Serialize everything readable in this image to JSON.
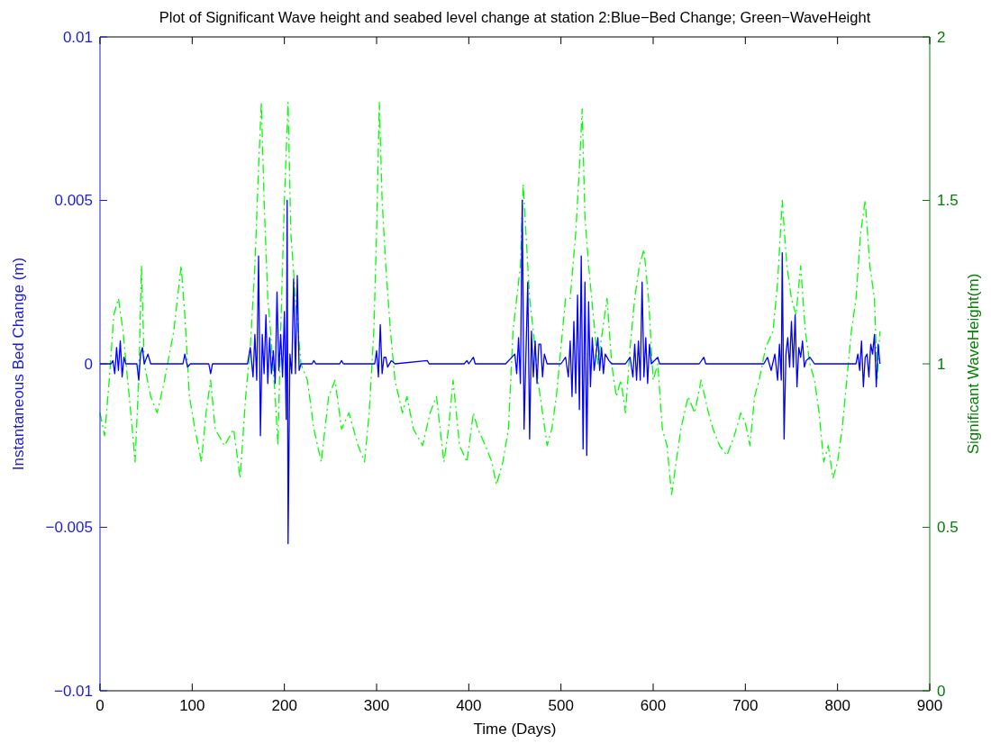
{
  "chart_data": {
    "type": "line",
    "title": "Plot of Significant Wave height and seabed level change at station 2:Blue−Bed Change; Green−WaveHeight",
    "xlabel": "Time (Days)",
    "ylabel": "Instantaneous Bed Change (m)",
    "y2label": "Significant WaveHeight(m)",
    "xlim": [
      0,
      900
    ],
    "xticks": [
      0,
      100,
      200,
      300,
      400,
      500,
      600,
      700,
      800,
      900
    ],
    "ylim": [
      -0.01,
      0.01
    ],
    "yticks": [
      {
        "value": -0.01,
        "label": "−0.01"
      },
      {
        "value": -0.005,
        "label": "−0.005"
      },
      0,
      0.005,
      0.01
    ],
    "y2lim": [
      0,
      2
    ],
    "y2ticks": [
      0,
      0.5,
      1,
      1.5,
      2
    ],
    "grid": false,
    "series": [
      {
        "color": "#00ff00",
        "axis": "y2",
        "line_style": "dashed",
        "x": [
          0,
          5,
          10,
          15,
          20,
          25,
          30,
          35,
          38,
          42,
          45,
          48,
          55,
          62,
          70,
          80,
          88,
          92,
          97,
          103,
          110,
          115,
          120,
          125,
          135,
          145,
          152,
          158,
          163,
          168,
          172,
          175,
          178,
          182,
          185,
          190,
          193,
          196,
          200,
          204,
          207,
          212,
          218,
          225,
          232,
          240,
          248,
          255,
          262,
          270,
          280,
          287,
          292,
          297,
          300,
          303,
          306,
          310,
          315,
          320,
          328,
          333,
          340,
          350,
          358,
          365,
          373,
          378,
          383,
          390,
          398,
          405,
          410,
          418,
          425,
          430,
          437,
          443,
          448,
          452,
          456,
          459,
          462,
          466,
          470,
          475,
          480,
          485,
          490,
          495,
          500,
          505,
          510,
          516,
          520,
          523,
          526,
          530,
          535,
          540,
          545,
          550,
          555,
          560,
          565,
          570,
          575,
          580,
          585,
          590,
          595,
          600,
          605,
          610,
          615,
          620,
          625,
          630,
          638,
          645,
          652,
          660,
          665,
          672,
          680,
          688,
          695,
          700,
          705,
          710,
          715,
          722,
          730,
          735,
          740,
          745,
          750,
          755,
          760,
          765,
          770,
          775,
          780,
          785,
          790,
          795,
          800,
          805,
          810,
          815,
          820,
          825,
          830,
          835,
          840,
          843,
          846
        ],
        "values": [
          0.85,
          0.78,
          0.95,
          1.15,
          1.2,
          1.1,
          0.95,
          0.8,
          0.7,
          0.95,
          1.3,
          1.0,
          0.9,
          0.85,
          0.95,
          1.1,
          1.3,
          1.15,
          0.9,
          0.8,
          0.7,
          0.85,
          0.95,
          0.8,
          0.75,
          0.8,
          0.65,
          0.9,
          1.05,
          1.3,
          1.6,
          1.8,
          1.5,
          1.2,
          1.1,
          0.9,
          0.75,
          1.1,
          1.5,
          1.8,
          1.4,
          1.2,
          1.0,
          0.95,
          0.8,
          0.7,
          0.9,
          0.95,
          0.8,
          0.85,
          0.75,
          0.7,
          0.85,
          1.1,
          1.4,
          1.8,
          1.5,
          1.3,
          1.1,
          0.95,
          0.85,
          0.9,
          0.8,
          0.75,
          0.85,
          0.9,
          0.7,
          0.8,
          0.95,
          0.75,
          0.7,
          0.85,
          0.8,
          0.75,
          0.7,
          0.63,
          0.7,
          0.8,
          1.1,
          1.2,
          1.3,
          1.55,
          1.4,
          1.2,
          1.1,
          0.95,
          0.85,
          0.75,
          0.8,
          0.9,
          1.05,
          1.2,
          1.2,
          1.4,
          1.6,
          1.78,
          1.45,
          1.3,
          1.15,
          1.0,
          1.1,
          1.2,
          1.0,
          0.9,
          0.95,
          0.85,
          1.05,
          1.2,
          1.3,
          1.35,
          1.2,
          0.95,
          1.0,
          0.8,
          0.75,
          0.6,
          0.7,
          0.8,
          0.9,
          0.85,
          0.95,
          0.85,
          0.8,
          0.75,
          0.72,
          0.78,
          0.85,
          0.82,
          0.75,
          0.9,
          0.95,
          1.05,
          1.1,
          1.25,
          1.5,
          1.3,
          1.2,
          1.15,
          1.3,
          1.1,
          1.0,
          0.95,
          0.85,
          0.7,
          0.75,
          0.65,
          0.7,
          0.8,
          0.95,
          1.1,
          1.2,
          1.4,
          1.5,
          1.3,
          1.2,
          0.95,
          1.1
        ]
      },
      {
        "color": "#0000ff",
        "axis": "y",
        "line_style": "solid",
        "x": [
          0,
          12,
          14,
          16,
          18,
          20,
          22,
          24,
          26,
          28,
          40,
          42,
          44,
          46,
          48,
          52,
          55,
          90,
          92,
          95,
          98,
          118,
          120,
          122,
          160,
          163,
          166,
          168,
          170,
          172,
          174,
          176,
          178,
          180,
          182,
          184,
          186,
          188,
          190,
          192,
          194,
          196,
          198,
          200,
          202,
          203,
          204,
          206,
          208,
          210,
          212,
          214,
          216,
          218,
          230,
          232,
          234,
          260,
          262,
          264,
          298,
          300,
          302,
          304,
          306,
          308,
          310,
          312,
          316,
          320,
          355,
          357,
          395,
          398,
          400,
          405,
          407,
          440,
          450,
          452,
          454,
          456,
          458,
          460,
          462,
          464,
          466,
          468,
          470,
          472,
          474,
          476,
          478,
          480,
          482,
          485,
          500,
          505,
          508,
          510,
          512,
          514,
          516,
          518,
          520,
          522,
          524,
          526,
          528,
          530,
          532,
          534,
          536,
          540,
          542,
          544,
          546,
          548,
          552,
          555,
          570,
          575,
          578,
          580,
          582,
          584,
          586,
          588,
          590,
          592,
          594,
          596,
          598,
          605,
          607,
          650,
          655,
          657,
          720,
          724,
          728,
          732,
          735,
          737,
          739,
          740,
          742,
          744,
          746,
          748,
          750,
          752,
          754,
          756,
          758,
          760,
          762,
          764,
          766,
          770,
          775,
          820,
          822,
          824,
          826,
          828,
          830,
          832,
          834,
          836,
          838,
          840,
          842,
          844,
          846
        ],
        "values": [
          0,
          0,
          0.0001,
          -0.0003,
          0.0005,
          -0.0002,
          0.0007,
          -0.0004,
          0.0002,
          0,
          0,
          -0.0005,
          0.0003,
          0.0005,
          0,
          0.0003,
          0,
          0,
          0.0003,
          -0.0001,
          0,
          0,
          -0.0003,
          0,
          0,
          0.0005,
          -0.0004,
          0.0009,
          -0.0005,
          0.0033,
          -0.0022,
          0.0009,
          -0.0003,
          0.0015,
          -0.0006,
          0.0008,
          -0.0003,
          0.0004,
          -0.0006,
          0.0022,
          -0.0002,
          0.0009,
          -0.0004,
          0.0016,
          -0.0017,
          0.005,
          -0.0055,
          0.0003,
          -0.0003,
          0.0026,
          -0.0003,
          0.0027,
          -0.0002,
          0,
          0,
          0.0001,
          0,
          0,
          0.0001,
          0,
          0,
          0.0004,
          -0.0004,
          0.0012,
          -0.0003,
          0.0002,
          0.0002,
          -0.0001,
          0.0001,
          0,
          0.0001,
          0,
          0,
          0.0001,
          0,
          0.0002,
          0,
          0,
          0.0003,
          -0.0003,
          0.0008,
          -0.0006,
          0.005,
          -0.002,
          0.0003,
          0.0025,
          -0.0023,
          0.001,
          -0.0004,
          0.0007,
          -0.0006,
          0.0006,
          0.0006,
          -0.0004,
          0.0003,
          0,
          0,
          0.0002,
          -0.0004,
          0.0007,
          -0.001,
          0.0013,
          -0.0009,
          0.0021,
          -0.0014,
          0.0033,
          -0.0026,
          0.0025,
          -0.0028,
          0.0019,
          -0.0007,
          0.0008,
          -0.0002,
          0.0008,
          -0.0002,
          0.0005,
          -0.0003,
          0.0003,
          0.0001,
          0,
          0,
          0.0002,
          -0.0004,
          0.0006,
          -0.0005,
          0.0007,
          -0.0005,
          0.0025,
          -0.0004,
          0.0008,
          -0.0006,
          0.0006,
          0,
          0.0002,
          0,
          0,
          0.0002,
          0,
          0,
          0.0002,
          -0.0002,
          0.0003,
          -0.0005,
          0.0006,
          -0.0005,
          0.0034,
          -0.0023,
          0.0003,
          0.0008,
          -0.0001,
          0.0013,
          -0.0001,
          0.0015,
          -0.0007,
          0.0005,
          0.0002,
          0.0007,
          -0.0001,
          0.0001,
          0.0002,
          0,
          0,
          0.0003,
          -0.0002,
          0.0007,
          -0.0007,
          0.0002,
          0.0003,
          -0.0004,
          0.0006,
          0.0003,
          0.0009,
          -0.0007,
          0.0006,
          0
        ]
      }
    ]
  }
}
